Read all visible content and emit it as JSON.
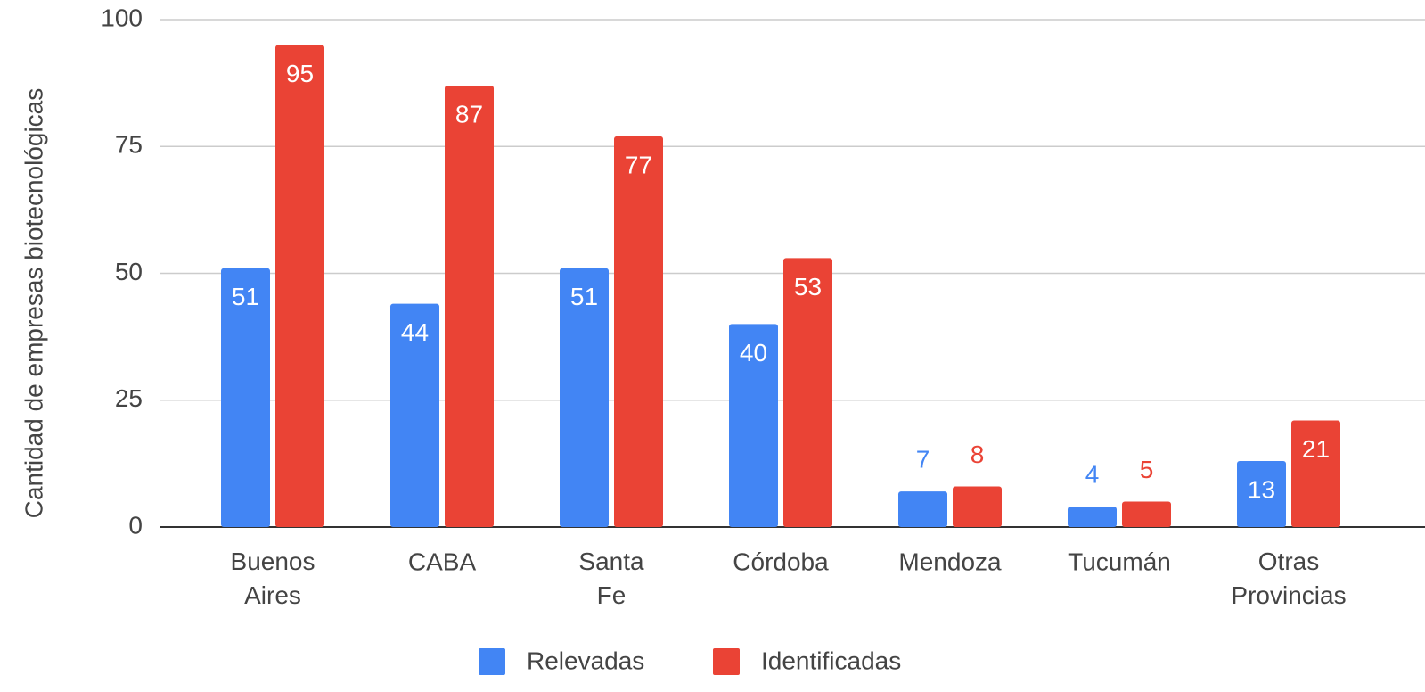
{
  "chart_data": {
    "type": "bar",
    "y_label": "Cantidad de empresas biotecnológicas",
    "categories": [
      "Buenos Aires",
      "CABA",
      "Santa Fe",
      "Córdoba",
      "Mendoza",
      "Tucumán",
      "Otras Provincias"
    ],
    "series": [
      {
        "name": "Relevadas",
        "color": "#4285f4",
        "values": [
          51,
          44,
          51,
          40,
          7,
          4,
          13
        ]
      },
      {
        "name": "Identificadas",
        "color": "#ea4335",
        "values": [
          95,
          87,
          77,
          53,
          8,
          5,
          21
        ]
      }
    ],
    "ylim": [
      0,
      100
    ],
    "yticks": [
      0,
      25,
      50,
      75,
      100
    ],
    "grid": true,
    "legend": "bottom"
  }
}
